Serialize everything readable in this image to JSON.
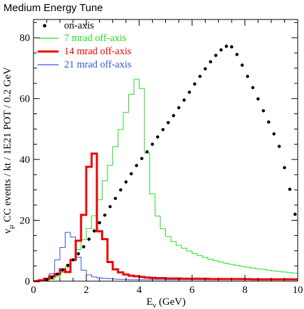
{
  "chart_data": {
    "type": "line",
    "title": "Medium Energy Tune",
    "xlabel": "E_ν (GeV)",
    "ylabel": "ν_μ CC events / kt / 1E21 POT / 0.2 GeV",
    "xlim": [
      0,
      10
    ],
    "ylim": [
      0,
      86
    ],
    "x_ticks": [
      "0",
      "2",
      "4",
      "6",
      "8",
      "10"
    ],
    "y_ticks": [
      "0",
      "20",
      "40",
      "60",
      "80"
    ],
    "legend_position": "top-left",
    "series": [
      {
        "name": "on-axis",
        "style": "dots",
        "color": "#000000",
        "x": [
          0.5,
          0.7,
          0.9,
          1.1,
          1.3,
          1.5,
          1.7,
          1.9,
          2.1,
          2.3,
          2.5,
          2.7,
          2.9,
          3.1,
          3.3,
          3.5,
          3.7,
          3.9,
          4.1,
          4.3,
          4.5,
          4.7,
          4.9,
          5.1,
          5.3,
          5.5,
          5.7,
          5.9,
          6.1,
          6.3,
          6.5,
          6.7,
          6.9,
          7.1,
          7.3,
          7.5,
          7.7,
          7.9,
          8.1,
          8.3,
          8.5,
          8.7,
          8.9,
          9.1,
          9.3,
          9.5,
          9.7,
          9.9
        ],
        "values": [
          0.5,
          1.2,
          2.3,
          3.6,
          5.2,
          7.0,
          9.0,
          11.3,
          13.8,
          16.5,
          19.2,
          21.7,
          24.5,
          27.2,
          30.0,
          32.6,
          35.3,
          38.0,
          40.3,
          42.5,
          45.0,
          47.4,
          49.8,
          52.1,
          54.4,
          57.0,
          59.5,
          62.1,
          64.8,
          67.3,
          69.8,
          72.1,
          74.2,
          76.0,
          77.2,
          77.0,
          74.5,
          71.0,
          67.3,
          63.6,
          59.9,
          56.0,
          52.3,
          48.4,
          44.3,
          37.3,
          30.2,
          22.0
        ]
      },
      {
        "name": "7 mrad off-axis",
        "style": "step",
        "color": "#22dd22",
        "edges": [
          0,
          0.2,
          0.4,
          0.6,
          0.8,
          1.0,
          1.2,
          1.4,
          1.6,
          1.8,
          2.0,
          2.2,
          2.4,
          2.6,
          2.8,
          3.0,
          3.2,
          3.4,
          3.6,
          3.8,
          4.0,
          4.2,
          4.4,
          4.6,
          4.8,
          5.0,
          5.2,
          5.4,
          5.6,
          5.8,
          6.0,
          6.2,
          6.4,
          6.6,
          6.8,
          7.0,
          7.2,
          7.4,
          7.6,
          7.8,
          8.0,
          8.2,
          8.4,
          8.6,
          8.8,
          9.0,
          9.2,
          9.4,
          9.6,
          9.8,
          10.0
        ],
        "values": [
          0,
          0.1,
          0.3,
          0.6,
          1.4,
          2.8,
          4.6,
          7.0,
          10.4,
          13.6,
          17.3,
          21.5,
          26.8,
          33.0,
          38.1,
          44.2,
          49.9,
          55.5,
          61.4,
          66.4,
          63.3,
          42.1,
          28.7,
          21.4,
          17.2,
          14.7,
          13.0,
          11.8,
          10.8,
          9.9,
          9.1,
          8.4,
          7.8,
          7.2,
          6.7,
          6.3,
          5.9,
          5.5,
          5.2,
          4.9,
          4.6,
          4.3,
          4.1,
          3.9,
          3.6,
          3.4,
          3.2,
          3.0,
          2.8,
          2.6
        ]
      },
      {
        "name": "14 mrad off-axis",
        "style": "step",
        "color": "#ee0000",
        "edges": [
          0,
          0.2,
          0.4,
          0.6,
          0.8,
          1.0,
          1.2,
          1.4,
          1.6,
          1.8,
          2.0,
          2.2,
          2.4,
          2.6,
          2.8,
          3.0,
          3.2,
          3.4,
          3.6,
          3.8,
          4.0,
          4.2,
          4.4,
          4.6,
          4.8,
          5.0,
          5.2,
          5.4,
          5.6,
          5.8,
          6.0,
          6.2,
          6.4,
          6.6,
          6.8,
          7.0,
          7.2,
          7.4,
          7.6,
          7.8,
          8.0,
          8.2,
          8.4,
          8.6,
          8.8,
          9.0,
          9.2,
          9.4,
          9.6,
          9.8,
          10.0
        ],
        "values": [
          0,
          0.3,
          0.8,
          1.6,
          2.3,
          3.9,
          3.0,
          7.0,
          13.3,
          21.8,
          37.6,
          41.9,
          16.4,
          13.8,
          6.3,
          3.9,
          2.9,
          2.2,
          1.8,
          1.6,
          1.4,
          1.2,
          1.1,
          1.0,
          1.0,
          0.9,
          0.9,
          0.9,
          0.8,
          0.8,
          0.8,
          0.8,
          0.8,
          0.7,
          0.7,
          0.7,
          0.7,
          0.7,
          0.7,
          0.7,
          0.7,
          0.6,
          0.6,
          0.6,
          0.6,
          0.6,
          0.6,
          0.6,
          0.6,
          0.6
        ]
      },
      {
        "name": "21 mrad off-axis",
        "style": "step",
        "color": "#3355dd",
        "edges": [
          0,
          0.2,
          0.4,
          0.6,
          0.8,
          1.0,
          1.2,
          1.4,
          1.6,
          1.8,
          2.0,
          2.2,
          2.4,
          2.6,
          2.8,
          3.0,
          3.2,
          3.4,
          3.6,
          3.8,
          4.0,
          4.2,
          4.4,
          4.6,
          4.8,
          5.0,
          5.2,
          5.4,
          5.6,
          5.8,
          6.0,
          6.2,
          6.4,
          6.6,
          6.8,
          7.0,
          7.2,
          7.4,
          7.6,
          7.8,
          8.0,
          8.2,
          8.4,
          8.6,
          8.8,
          9.0,
          9.2,
          9.4,
          9.6,
          9.8,
          10.0
        ],
        "values": [
          0,
          0.2,
          0.9,
          2.4,
          7.0,
          11.1,
          16.0,
          14.5,
          7.9,
          3.6,
          2.1,
          1.4,
          1.1,
          0.9,
          0.8,
          0.7,
          0.6,
          0.6,
          0.5,
          0.5,
          0.5,
          0.5,
          0.5,
          0.5,
          0.5,
          0.5,
          0.5,
          0.5,
          0.5,
          0.5,
          0.5,
          0.5,
          0.5,
          0.5,
          0.5,
          0.5,
          0.5,
          0.5,
          0.5,
          0.5,
          0.5,
          0.5,
          0.5,
          0.5,
          0.5,
          0.5,
          0.5,
          0.5,
          0.5,
          0.5
        ]
      }
    ]
  }
}
